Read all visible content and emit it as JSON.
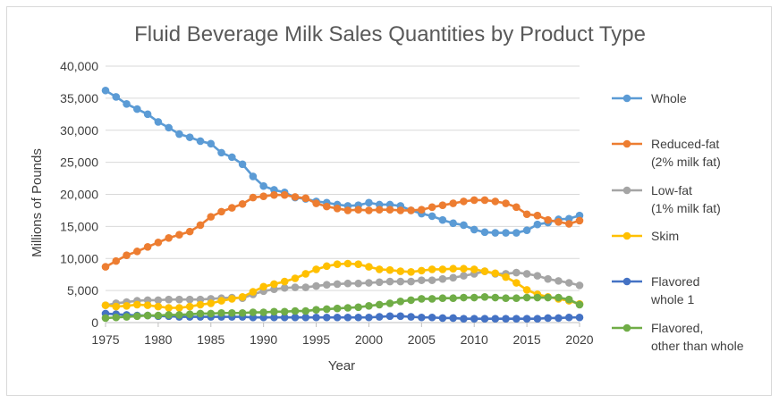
{
  "chart_data": {
    "type": "line",
    "title": "Fluid Beverage Milk Sales Quantities by Product Type",
    "xlabel": "Year",
    "ylabel": "Millions of Pounds",
    "xlim": [
      1975,
      2020
    ],
    "ylim": [
      0,
      40000
    ],
    "xticks": [
      "1975",
      "1980",
      "1985",
      "1990",
      "1995",
      "2000",
      "2005",
      "2010",
      "2015",
      "2020"
    ],
    "yticks": [
      "0",
      "5,000",
      "10,000",
      "15,000",
      "20,000",
      "25,000",
      "30,000",
      "35,000",
      "40,000"
    ],
    "grid": true,
    "legend": "right",
    "x": [
      1975,
      1976,
      1977,
      1978,
      1979,
      1980,
      1981,
      1982,
      1983,
      1984,
      1985,
      1986,
      1987,
      1988,
      1989,
      1990,
      1991,
      1992,
      1993,
      1994,
      1995,
      1996,
      1997,
      1998,
      1999,
      2000,
      2001,
      2002,
      2003,
      2004,
      2005,
      2006,
      2007,
      2008,
      2009,
      2010,
      2011,
      2012,
      2013,
      2014,
      2015,
      2016,
      2017,
      2018,
      2019,
      2020
    ],
    "series": [
      {
        "name": "Whole",
        "legend_lines": [
          "Whole"
        ],
        "color": "#5b9bd5",
        "values": [
          36200,
          35200,
          34100,
          33300,
          32500,
          31300,
          30400,
          29400,
          28900,
          28300,
          27900,
          26500,
          25800,
          24700,
          22800,
          21300,
          20700,
          20300,
          19500,
          19300,
          18900,
          18700,
          18400,
          18200,
          18300,
          18700,
          18400,
          18400,
          18200,
          17500,
          17000,
          16600,
          16000,
          15500,
          15200,
          14500,
          14100,
          14000,
          14000,
          14000,
          14400,
          15300,
          15600,
          16100,
          16200,
          16700
        ]
      },
      {
        "name": "Reduced-fat (2% milk fat)",
        "legend_lines": [
          "Reduced-fat",
          "(2% milk fat)"
        ],
        "color": "#ed7d31",
        "values": [
          8700,
          9600,
          10500,
          11100,
          11800,
          12500,
          13200,
          13700,
          14200,
          15200,
          16500,
          17300,
          17900,
          18500,
          19500,
          19700,
          19900,
          19900,
          19600,
          19400,
          18600,
          18100,
          17800,
          17500,
          17600,
          17500,
          17600,
          17600,
          17500,
          17500,
          17600,
          18000,
          18300,
          18600,
          18900,
          19100,
          19100,
          18900,
          18600,
          18000,
          16900,
          16700,
          16000,
          15700,
          15400,
          15900
        ]
      },
      {
        "name": "Low-fat (1% milk fat)",
        "legend_lines": [
          "Low-fat",
          "(1% milk fat)"
        ],
        "color": "#a5a5a5",
        "values": [
          2700,
          3000,
          3200,
          3400,
          3500,
          3500,
          3600,
          3600,
          3600,
          3600,
          3700,
          3800,
          3900,
          3800,
          4400,
          4900,
          5200,
          5400,
          5500,
          5500,
          5700,
          5900,
          6000,
          6100,
          6100,
          6200,
          6300,
          6400,
          6400,
          6400,
          6600,
          6600,
          6800,
          7000,
          7300,
          7600,
          8000,
          7600,
          7600,
          7800,
          7600,
          7300,
          6800,
          6500,
          6200,
          5800
        ]
      },
      {
        "name": "Skim",
        "legend_lines": [
          "Skim"
        ],
        "color": "#ffc000",
        "values": [
          2700,
          2500,
          2600,
          2800,
          2700,
          2500,
          2300,
          2300,
          2500,
          2800,
          3000,
          3400,
          3700,
          4000,
          4800,
          5600,
          6000,
          6400,
          6900,
          7600,
          8300,
          8800,
          9100,
          9200,
          9100,
          8700,
          8300,
          8200,
          8000,
          7900,
          8100,
          8300,
          8300,
          8400,
          8400,
          8300,
          8000,
          7700,
          7100,
          6200,
          5100,
          4400,
          4000,
          3700,
          3400,
          2900
        ]
      },
      {
        "name": "Flavored whole 1",
        "legend_lines": [
          "Flavored",
          "whole 1"
        ],
        "color": "#4472c4",
        "values": [
          1400,
          1300,
          1200,
          1100,
          1100,
          1000,
          1000,
          900,
          900,
          900,
          900,
          900,
          900,
          900,
          800,
          800,
          800,
          800,
          800,
          800,
          800,
          800,
          800,
          800,
          800,
          800,
          900,
          1000,
          1000,
          900,
          800,
          800,
          700,
          700,
          600,
          600,
          600,
          600,
          600,
          600,
          600,
          600,
          700,
          700,
          800,
          800
        ]
      },
      {
        "name": "Flavored, other than whole",
        "legend_lines": [
          "Flavored,",
          "other than whole"
        ],
        "color": "#70ad47",
        "values": [
          700,
          800,
          900,
          1000,
          1100,
          1100,
          1200,
          1200,
          1300,
          1400,
          1400,
          1500,
          1500,
          1500,
          1600,
          1600,
          1700,
          1700,
          1800,
          1800,
          2000,
          2100,
          2200,
          2300,
          2400,
          2600,
          2800,
          3000,
          3300,
          3500,
          3700,
          3700,
          3800,
          3800,
          3900,
          3900,
          4000,
          3900,
          3800,
          3800,
          3900,
          3900,
          3900,
          3900,
          3600,
          2800
        ]
      }
    ]
  }
}
